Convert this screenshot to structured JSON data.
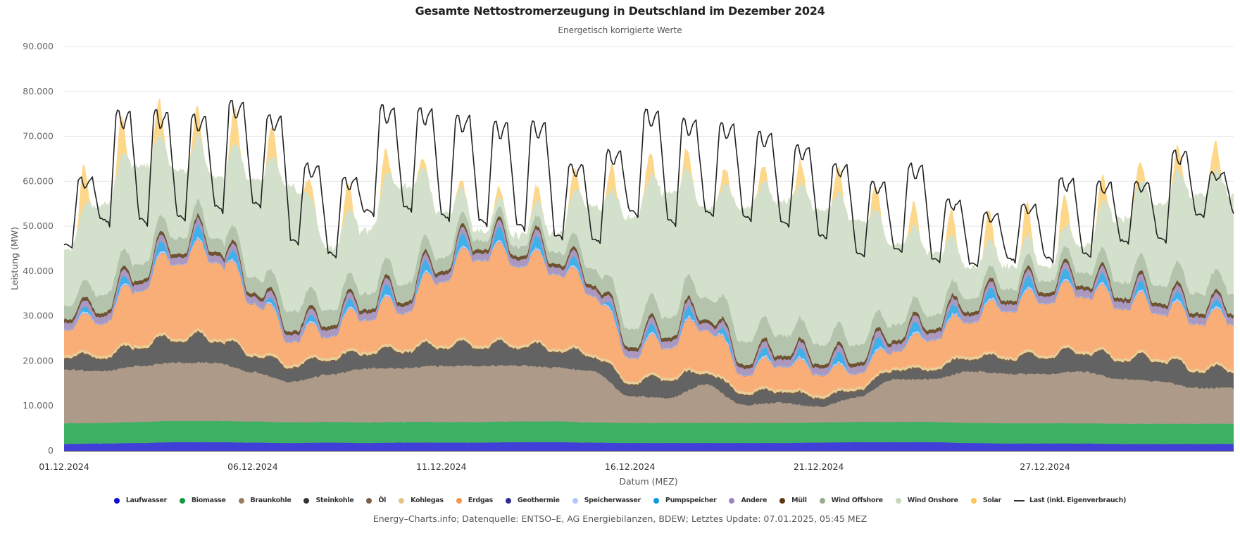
{
  "chart_data": {
    "type": "area",
    "stacked": true,
    "title": "Gesamte Nettostromerzeugung in Deutschland im Dezember 2024",
    "subtitle": "Energetisch korrigierte Werte",
    "xlabel": "Datum (MEZ)",
    "ylabel": "Leistung (MW)",
    "ylim": [
      0,
      90000
    ],
    "yticks": [
      0,
      10000,
      20000,
      30000,
      40000,
      50000,
      60000,
      70000,
      80000,
      90000
    ],
    "ytick_labels": [
      "0",
      "10.000",
      "20.000",
      "30.000",
      "40.000",
      "50.000",
      "60.000",
      "70.000",
      "80.000",
      "90.000"
    ],
    "x_start": "01.12.2024 00:00",
    "x_days": 31,
    "samples_per_day": 4,
    "xticks": [
      {
        "day": 0,
        "label": "01.12.2024"
      },
      {
        "day": 5,
        "label": "06.12.2024"
      },
      {
        "day": 10,
        "label": "11.12.2024"
      },
      {
        "day": 15,
        "label": "16.12.2024"
      },
      {
        "day": 20,
        "label": "21.12.2024"
      },
      {
        "day": 26,
        "label": "27.12.2024"
      }
    ],
    "grid": true,
    "legend_position": "bottom",
    "daily_profiles": {
      "Laufwasser": [
        1500,
        1600,
        1700,
        1900,
        1900,
        1800,
        1700,
        1800,
        1700,
        1800,
        1800,
        1800,
        1900,
        1900,
        1800,
        1700,
        1700,
        1700,
        1700,
        1700,
        1800,
        1900,
        1900,
        1900,
        1700,
        1600,
        1600,
        1600,
        1500,
        1500,
        1500
      ],
      "Biomasse": [
        4600,
        4600,
        4700,
        4700,
        4700,
        4700,
        4600,
        4600,
        4600,
        4600,
        4600,
        4600,
        4600,
        4600,
        4500,
        4500,
        4500,
        4500,
        4500,
        4500,
        4500,
        4500,
        4500,
        4500,
        4500,
        4500,
        4500,
        4500,
        4500,
        4500,
        4500
      ],
      "Braunkohle": [
        12000,
        11500,
        12500,
        13000,
        13000,
        11000,
        9000,
        10500,
        12000,
        12000,
        12500,
        12500,
        12500,
        12000,
        11500,
        6000,
        5500,
        8500,
        4000,
        4500,
        3500,
        5500,
        9500,
        9500,
        11500,
        11000,
        11000,
        11500,
        10000,
        9500,
        8000
      ],
      "Steinkohle": [
        3000,
        3000,
        4500,
        5500,
        5500,
        4000,
        3500,
        3500,
        3500,
        4000,
        4500,
        4500,
        4500,
        4000,
        3500,
        3000,
        4500,
        2500,
        2500,
        2500,
        2000,
        1500,
        2000,
        2000,
        3000,
        3500,
        4000,
        4500,
        4500,
        5000,
        4000
      ],
      "Oel": [
        300,
        300,
        300,
        300,
        300,
        300,
        300,
        300,
        300,
        300,
        300,
        300,
        300,
        300,
        300,
        300,
        300,
        300,
        300,
        300,
        300,
        300,
        300,
        300,
        300,
        300,
        300,
        300,
        300,
        300,
        300
      ],
      "Kohlegas": [
        600,
        600,
        600,
        600,
        600,
        600,
        600,
        600,
        600,
        600,
        600,
        600,
        600,
        600,
        600,
        600,
        600,
        600,
        600,
        600,
        600,
        600,
        600,
        600,
        600,
        600,
        600,
        600,
        600,
        600,
        600
      ],
      "Erdgas_base": [
        5500,
        7000,
        12000,
        16500,
        17000,
        11000,
        5000,
        4500,
        7000,
        8000,
        14000,
        19000,
        17500,
        16500,
        13000,
        5000,
        6500,
        9000,
        3500,
        5000,
        4500,
        3000,
        3500,
        6000,
        7500,
        10000,
        11500,
        12000,
        11000,
        10000,
        10000
      ],
      "Erdgas_amp": [
        1500,
        2000,
        3000,
        3000,
        3000,
        3000,
        2500,
        2500,
        3000,
        3000,
        3000,
        3000,
        3000,
        3000,
        2500,
        2000,
        3000,
        3000,
        2000,
        2000,
        2000,
        1500,
        2000,
        2000,
        2500,
        2500,
        2500,
        2500,
        2500,
        2500,
        2000
      ],
      "Geothermie": [
        20,
        20,
        20,
        20,
        20,
        20,
        20,
        20,
        20,
        20,
        20,
        20,
        20,
        20,
        20,
        20,
        20,
        20,
        20,
        20,
        20,
        20,
        20,
        20,
        20,
        20,
        20,
        20,
        20,
        20,
        20
      ],
      "Speicherwasser": [
        300,
        300,
        300,
        300,
        300,
        300,
        300,
        300,
        300,
        300,
        300,
        300,
        300,
        300,
        300,
        300,
        300,
        300,
        300,
        300,
        300,
        300,
        300,
        300,
        300,
        300,
        300,
        300,
        300,
        300,
        300
      ],
      "Pumpspeicher_peak": [
        500,
        1500,
        2000,
        2500,
        3000,
        1500,
        1000,
        1500,
        2000,
        2500,
        2500,
        3000,
        3000,
        2500,
        1500,
        1000,
        2500,
        2000,
        1500,
        2000,
        2000,
        2500,
        2500,
        2000,
        2000,
        2500,
        2500,
        2000,
        2000,
        2000,
        1500
      ],
      "Andere": [
        1500,
        1500,
        1500,
        1500,
        1500,
        1500,
        1500,
        1500,
        1500,
        1500,
        1500,
        1500,
        1500,
        1500,
        1500,
        1500,
        1500,
        1500,
        1500,
        1500,
        1500,
        1500,
        1500,
        1500,
        1500,
        1500,
        1500,
        1500,
        1500,
        1500,
        1500
      ],
      "Muell": [
        800,
        800,
        800,
        800,
        800,
        800,
        800,
        800,
        800,
        800,
        800,
        800,
        800,
        800,
        800,
        800,
        800,
        800,
        800,
        800,
        800,
        800,
        800,
        800,
        800,
        800,
        800,
        800,
        800,
        800,
        800
      ],
      "Wind_Offshore": [
        3000,
        4000,
        3500,
        3500,
        3000,
        3500,
        4500,
        3500,
        3500,
        4000,
        3000,
        2000,
        2000,
        2500,
        3500,
        4000,
        4500,
        5000,
        5000,
        4500,
        4500,
        4000,
        3500,
        3000,
        3000,
        2500,
        2500,
        3000,
        3500,
        4000,
        4500
      ],
      "Wind_Onshore": [
        12000,
        20000,
        22000,
        15000,
        14000,
        22000,
        28000,
        14000,
        14000,
        22000,
        10000,
        2000,
        2500,
        4000,
        14000,
        25000,
        28000,
        20000,
        30000,
        30000,
        30000,
        28000,
        18000,
        14000,
        7000,
        5000,
        3500,
        6000,
        14000,
        18000,
        22000
      ],
      "Solar_peak": [
        10000,
        9000,
        9000,
        7000,
        6000,
        10000,
        4000,
        3500,
        9000,
        3000,
        1000,
        2000,
        2500,
        4500,
        5500,
        6000,
        5000,
        4000,
        3000,
        4500,
        5500,
        6000,
        5000,
        5500,
        6000,
        7000,
        8000,
        6500,
        5500,
        4000,
        6500
      ]
    },
    "load_daily": {
      "night": [
        45000,
        50000,
        50000,
        51000,
        53000,
        54000,
        46000,
        43000,
        52000,
        53000,
        51000,
        50000,
        49000,
        47000,
        46000,
        52000,
        50000,
        52000,
        51000,
        50000,
        47000,
        43000,
        44000,
        42000,
        41000,
        42000,
        42000,
        43000,
        46000,
        46000,
        52000
      ],
      "peak": [
        61000,
        76000,
        76000,
        75000,
        78000,
        75000,
        64000,
        61000,
        77000,
        76500,
        75000,
        73500,
        73500,
        64000,
        67000,
        76000,
        74000,
        73000,
        71000,
        68000,
        64000,
        60000,
        64000,
        56000,
        53000,
        55000,
        61000,
        60000,
        60000,
        67000,
        62000
      ]
    },
    "series": [
      {
        "name": "Laufwasser",
        "color": "#4040d8"
      },
      {
        "name": "Biomasse",
        "color": "#3eb064"
      },
      {
        "name": "Braunkohle",
        "color": "#ad9a88"
      },
      {
        "name": "Steinkohle",
        "color": "#636363"
      },
      {
        "name": "Öl",
        "color": "#7a6048"
      },
      {
        "name": "Kohlegas",
        "color": "#e7cf9a"
      },
      {
        "name": "Erdgas",
        "color": "#f9ae78"
      },
      {
        "name": "Geothermie",
        "color": "#2d2d8f"
      },
      {
        "name": "Speicherwasser",
        "color": "#b8cdf8"
      },
      {
        "name": "Pumpspeicher",
        "color": "#3fb0e8"
      },
      {
        "name": "Andere",
        "color": "#aa98c0"
      },
      {
        "name": "Müll",
        "color": "#6e5232"
      },
      {
        "name": "Wind Offshore",
        "color": "#b3c3ac"
      },
      {
        "name": "Wind Onshore",
        "color": "#d3e1cc"
      },
      {
        "name": "Solar",
        "color": "#fdd78a"
      },
      {
        "name": "Last (inkl. Eigenverbrauch)",
        "color": "#222222",
        "type": "line"
      }
    ]
  },
  "legend": [
    {
      "label": "Laufwasser",
      "color": "#0a0ad0",
      "type": "dot"
    },
    {
      "label": "Biomasse",
      "color": "#139a40",
      "type": "dot"
    },
    {
      "label": "Braunkohle",
      "color": "#9a7e64",
      "type": "dot"
    },
    {
      "label": "Steinkohle",
      "color": "#333333",
      "type": "dot"
    },
    {
      "label": "Öl",
      "color": "#7a6048",
      "type": "dot"
    },
    {
      "label": "Kohlegas",
      "color": "#e2c488",
      "type": "dot"
    },
    {
      "label": "Erdgas",
      "color": "#f7964e",
      "type": "dot"
    },
    {
      "label": "Geothermie",
      "color": "#2d2d8f",
      "type": "dot"
    },
    {
      "label": "Speicherwasser",
      "color": "#b0c8f8",
      "type": "dot"
    },
    {
      "label": "Pumpspeicher",
      "color": "#0a9ae0",
      "type": "dot"
    },
    {
      "label": "Andere",
      "color": "#9a86b8",
      "type": "dot"
    },
    {
      "label": "Müll",
      "color": "#5a3810",
      "type": "dot"
    },
    {
      "label": "Wind Offshore",
      "color": "#94ac8c",
      "type": "dot"
    },
    {
      "label": "Wind Onshore",
      "color": "#c4d8bc",
      "type": "dot"
    },
    {
      "label": "Solar",
      "color": "#fdc458",
      "type": "dot"
    },
    {
      "label": "Last (inkl. Eigenverbrauch)",
      "color": "#333333",
      "type": "line"
    }
  ],
  "credits": "Energy–Charts.info; Datenquelle: ENTSO–E, AG Energiebilanzen, BDEW; Letztes Update: 07.01.2025, 05:45 MEZ"
}
